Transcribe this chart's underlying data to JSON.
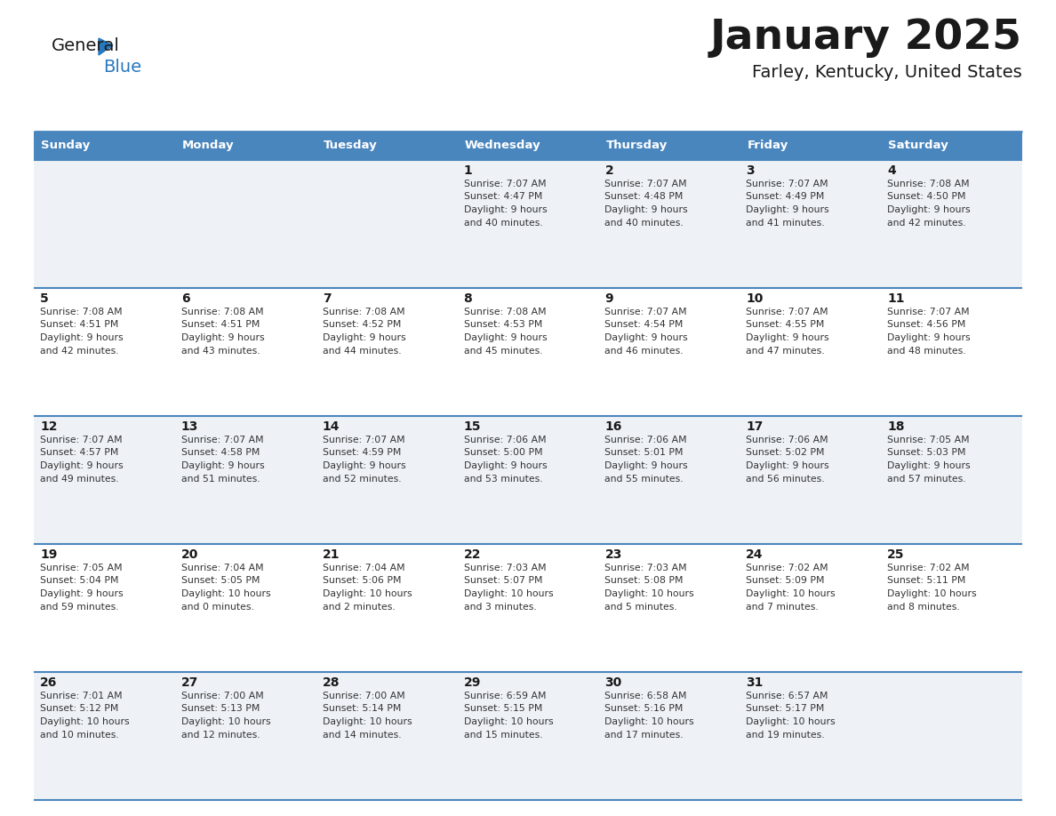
{
  "title": "January 2025",
  "subtitle": "Farley, Kentucky, United States",
  "header_bg": "#4a86be",
  "header_text_color": "#ffffff",
  "days_of_week": [
    "Sunday",
    "Monday",
    "Tuesday",
    "Wednesday",
    "Thursday",
    "Friday",
    "Saturday"
  ],
  "odd_row_bg": "#eef2f7",
  "even_row_bg": "#ffffff",
  "cell_text_color": "#333333",
  "day_num_color": "#1a1a1a",
  "divider_color": "#4a86be",
  "logo_black": "#1a1a1a",
  "logo_blue": "#2878be",
  "calendar": [
    [
      {
        "day": "",
        "sunrise": "",
        "sunset": "",
        "daylight_h": "",
        "daylight_m": ""
      },
      {
        "day": "",
        "sunrise": "",
        "sunset": "",
        "daylight_h": "",
        "daylight_m": ""
      },
      {
        "day": "",
        "sunrise": "",
        "sunset": "",
        "daylight_h": "",
        "daylight_m": ""
      },
      {
        "day": "1",
        "sunrise": "7:07 AM",
        "sunset": "4:47 PM",
        "daylight_h": "9 hours",
        "daylight_m": "and 40 minutes."
      },
      {
        "day": "2",
        "sunrise": "7:07 AM",
        "sunset": "4:48 PM",
        "daylight_h": "9 hours",
        "daylight_m": "and 40 minutes."
      },
      {
        "day": "3",
        "sunrise": "7:07 AM",
        "sunset": "4:49 PM",
        "daylight_h": "9 hours",
        "daylight_m": "and 41 minutes."
      },
      {
        "day": "4",
        "sunrise": "7:08 AM",
        "sunset": "4:50 PM",
        "daylight_h": "9 hours",
        "daylight_m": "and 42 minutes."
      }
    ],
    [
      {
        "day": "5",
        "sunrise": "7:08 AM",
        "sunset": "4:51 PM",
        "daylight_h": "9 hours",
        "daylight_m": "and 42 minutes."
      },
      {
        "day": "6",
        "sunrise": "7:08 AM",
        "sunset": "4:51 PM",
        "daylight_h": "9 hours",
        "daylight_m": "and 43 minutes."
      },
      {
        "day": "7",
        "sunrise": "7:08 AM",
        "sunset": "4:52 PM",
        "daylight_h": "9 hours",
        "daylight_m": "and 44 minutes."
      },
      {
        "day": "8",
        "sunrise": "7:08 AM",
        "sunset": "4:53 PM",
        "daylight_h": "9 hours",
        "daylight_m": "and 45 minutes."
      },
      {
        "day": "9",
        "sunrise": "7:07 AM",
        "sunset": "4:54 PM",
        "daylight_h": "9 hours",
        "daylight_m": "and 46 minutes."
      },
      {
        "day": "10",
        "sunrise": "7:07 AM",
        "sunset": "4:55 PM",
        "daylight_h": "9 hours",
        "daylight_m": "and 47 minutes."
      },
      {
        "day": "11",
        "sunrise": "7:07 AM",
        "sunset": "4:56 PM",
        "daylight_h": "9 hours",
        "daylight_m": "and 48 minutes."
      }
    ],
    [
      {
        "day": "12",
        "sunrise": "7:07 AM",
        "sunset": "4:57 PM",
        "daylight_h": "9 hours",
        "daylight_m": "and 49 minutes."
      },
      {
        "day": "13",
        "sunrise": "7:07 AM",
        "sunset": "4:58 PM",
        "daylight_h": "9 hours",
        "daylight_m": "and 51 minutes."
      },
      {
        "day": "14",
        "sunrise": "7:07 AM",
        "sunset": "4:59 PM",
        "daylight_h": "9 hours",
        "daylight_m": "and 52 minutes."
      },
      {
        "day": "15",
        "sunrise": "7:06 AM",
        "sunset": "5:00 PM",
        "daylight_h": "9 hours",
        "daylight_m": "and 53 minutes."
      },
      {
        "day": "16",
        "sunrise": "7:06 AM",
        "sunset": "5:01 PM",
        "daylight_h": "9 hours",
        "daylight_m": "and 55 minutes."
      },
      {
        "day": "17",
        "sunrise": "7:06 AM",
        "sunset": "5:02 PM",
        "daylight_h": "9 hours",
        "daylight_m": "and 56 minutes."
      },
      {
        "day": "18",
        "sunrise": "7:05 AM",
        "sunset": "5:03 PM",
        "daylight_h": "9 hours",
        "daylight_m": "and 57 minutes."
      }
    ],
    [
      {
        "day": "19",
        "sunrise": "7:05 AM",
        "sunset": "5:04 PM",
        "daylight_h": "9 hours",
        "daylight_m": "and 59 minutes."
      },
      {
        "day": "20",
        "sunrise": "7:04 AM",
        "sunset": "5:05 PM",
        "daylight_h": "10 hours",
        "daylight_m": "and 0 minutes."
      },
      {
        "day": "21",
        "sunrise": "7:04 AM",
        "sunset": "5:06 PM",
        "daylight_h": "10 hours",
        "daylight_m": "and 2 minutes."
      },
      {
        "day": "22",
        "sunrise": "7:03 AM",
        "sunset": "5:07 PM",
        "daylight_h": "10 hours",
        "daylight_m": "and 3 minutes."
      },
      {
        "day": "23",
        "sunrise": "7:03 AM",
        "sunset": "5:08 PM",
        "daylight_h": "10 hours",
        "daylight_m": "and 5 minutes."
      },
      {
        "day": "24",
        "sunrise": "7:02 AM",
        "sunset": "5:09 PM",
        "daylight_h": "10 hours",
        "daylight_m": "and 7 minutes."
      },
      {
        "day": "25",
        "sunrise": "7:02 AM",
        "sunset": "5:11 PM",
        "daylight_h": "10 hours",
        "daylight_m": "and 8 minutes."
      }
    ],
    [
      {
        "day": "26",
        "sunrise": "7:01 AM",
        "sunset": "5:12 PM",
        "daylight_h": "10 hours",
        "daylight_m": "and 10 minutes."
      },
      {
        "day": "27",
        "sunrise": "7:00 AM",
        "sunset": "5:13 PM",
        "daylight_h": "10 hours",
        "daylight_m": "and 12 minutes."
      },
      {
        "day": "28",
        "sunrise": "7:00 AM",
        "sunset": "5:14 PM",
        "daylight_h": "10 hours",
        "daylight_m": "and 14 minutes."
      },
      {
        "day": "29",
        "sunrise": "6:59 AM",
        "sunset": "5:15 PM",
        "daylight_h": "10 hours",
        "daylight_m": "and 15 minutes."
      },
      {
        "day": "30",
        "sunrise": "6:58 AM",
        "sunset": "5:16 PM",
        "daylight_h": "10 hours",
        "daylight_m": "and 17 minutes."
      },
      {
        "day": "31",
        "sunrise": "6:57 AM",
        "sunset": "5:17 PM",
        "daylight_h": "10 hours",
        "daylight_m": "and 19 minutes."
      },
      {
        "day": "",
        "sunrise": "",
        "sunset": "",
        "daylight_h": "",
        "daylight_m": ""
      }
    ]
  ]
}
